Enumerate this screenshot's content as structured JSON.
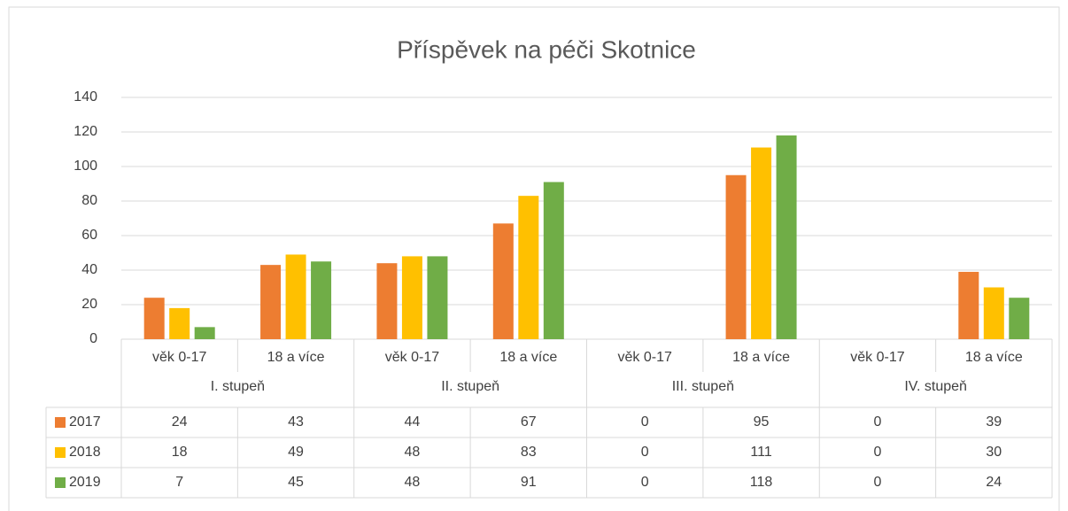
{
  "chart_data": {
    "type": "bar",
    "title": "Příspěvek na péči Skotnice",
    "categories": [
      "věk 0-17",
      "18 a více",
      "věk 0-17",
      "18 a více",
      "věk 0-17",
      "18 a více",
      "věk 0-17",
      "18 a více"
    ],
    "groups": [
      "I. stupeň",
      "II. stupeň",
      "III. stupeň",
      "IV. stupeň"
    ],
    "series": [
      {
        "name": "2017",
        "color": "#ed7d31",
        "values": [
          24,
          43,
          44,
          67,
          0,
          95,
          0,
          39
        ]
      },
      {
        "name": "2018",
        "color": "#ffc000",
        "values": [
          18,
          49,
          48,
          83,
          0,
          111,
          0,
          30
        ]
      },
      {
        "name": "2019",
        "color": "#70ad47",
        "values": [
          7,
          45,
          48,
          91,
          0,
          118,
          0,
          24
        ]
      }
    ],
    "ylim": [
      0,
      140
    ],
    "yticks": [
      0,
      20,
      40,
      60,
      80,
      100,
      120,
      140
    ],
    "grid": true
  }
}
